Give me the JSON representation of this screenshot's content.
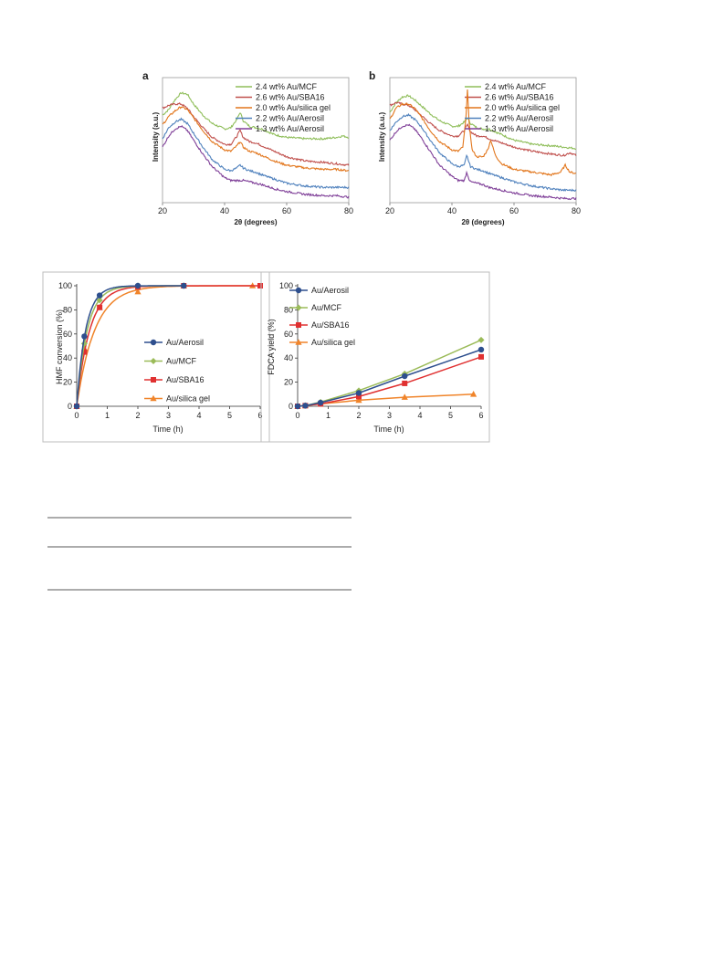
{
  "chart_data": [
    {
      "id": "xrd_a",
      "type": "line",
      "panel_label": "a",
      "xlabel": "2θ (degrees)",
      "ylabel": "Intensity (a.u.)",
      "xlim": [
        20,
        80
      ],
      "x_ticks": [
        "20",
        "40",
        "60",
        "80"
      ],
      "y_ticks": [],
      "legend_position": "top-right",
      "series": [
        {
          "name": "2.4 wt% Au/MCF",
          "color": "#8fbe5a",
          "x": [
            20,
            22,
            24,
            26,
            28,
            30,
            33,
            36,
            40,
            42,
            44,
            45,
            46,
            48,
            50,
            52,
            56,
            60,
            66,
            72,
            76,
            78,
            80
          ],
          "y": [
            63,
            67,
            74,
            79,
            78,
            71,
            63,
            57,
            53,
            54,
            60,
            65,
            59,
            55,
            54,
            53,
            49,
            47,
            46,
            46,
            47,
            48,
            47
          ]
        },
        {
          "name": "2.6 wt% Au/SBA16",
          "color": "#c0504d",
          "x": [
            20,
            22,
            24,
            26,
            28,
            30,
            33,
            36,
            40,
            42,
            44,
            45,
            46,
            48,
            50,
            52,
            56,
            60,
            66,
            72,
            76,
            80
          ],
          "y": [
            68,
            70,
            71,
            71,
            68,
            62,
            54,
            47,
            42,
            42,
            48,
            52,
            47,
            44,
            43,
            41,
            37,
            33,
            30,
            29,
            28,
            27
          ]
        },
        {
          "name": "2.0 wt% Au/silica gel",
          "color": "#e2761c",
          "x": [
            20,
            22,
            24,
            26,
            28,
            30,
            33,
            36,
            40,
            42,
            44,
            45,
            46,
            48,
            50,
            52,
            56,
            60,
            66,
            72,
            76,
            80
          ],
          "y": [
            56,
            62,
            66,
            69,
            67,
            61,
            52,
            44,
            38,
            37,
            41,
            44,
            40,
            37,
            36,
            34,
            30,
            27,
            25,
            24,
            24,
            23
          ]
        },
        {
          "name": "2.2 wt% Au/Aerosil",
          "color": "#4f81bd",
          "x": [
            20,
            22,
            24,
            26,
            28,
            30,
            33,
            36,
            40,
            42,
            44,
            45,
            46,
            48,
            50,
            52,
            56,
            60,
            66,
            72,
            76,
            80
          ],
          "y": [
            46,
            54,
            58,
            60,
            57,
            50,
            40,
            31,
            24,
            23,
            25,
            27,
            25,
            23,
            22,
            20,
            17,
            14,
            12,
            11,
            11,
            11
          ]
        },
        {
          "name": "1.3 wt% Au/Aerosil",
          "color": "#7f3f98",
          "x": [
            20,
            22,
            24,
            26,
            28,
            30,
            33,
            36,
            40,
            42,
            44,
            46,
            48,
            50,
            52,
            56,
            60,
            66,
            72,
            76,
            80
          ],
          "y": [
            40,
            48,
            53,
            55,
            52,
            45,
            35,
            26,
            18,
            16,
            16,
            16,
            15,
            14,
            13,
            10,
            8,
            6,
            5,
            5,
            4
          ]
        }
      ]
    },
    {
      "id": "xrd_b",
      "type": "line",
      "panel_label": "b",
      "xlabel": "2θ (degrees)",
      "ylabel": "Intensity (a.u.)",
      "xlim": [
        20,
        80
      ],
      "x_ticks": [
        "20",
        "40",
        "60",
        "80"
      ],
      "y_ticks": [],
      "legend_position": "top-right",
      "series": [
        {
          "name": "2.4 wt% Au/MCF",
          "color": "#8fbe5a",
          "x": [
            20,
            22,
            24,
            26,
            28,
            30,
            33,
            36,
            40,
            42,
            44,
            45,
            46,
            48,
            50,
            52,
            56,
            60,
            66,
            72,
            76,
            80
          ],
          "y": [
            65,
            72,
            76,
            77,
            74,
            70,
            64,
            59,
            55,
            55,
            58,
            61,
            57,
            54,
            53,
            53,
            49,
            45,
            42,
            41,
            40,
            39
          ]
        },
        {
          "name": "2.6 wt% Au/SBA16",
          "color": "#c0504d",
          "x": [
            20,
            22,
            24,
            26,
            28,
            30,
            33,
            36,
            40,
            42,
            44,
            45,
            46,
            48,
            50,
            52,
            56,
            60,
            66,
            72,
            76,
            78,
            80
          ],
          "y": [
            70,
            72,
            71,
            70,
            67,
            63,
            57,
            52,
            48,
            48,
            52,
            56,
            51,
            48,
            48,
            46,
            43,
            40,
            37,
            35,
            34,
            36,
            34
          ]
        },
        {
          "name": "2.0 wt% Au/silica gel",
          "color": "#e2761c",
          "x": [
            20,
            22,
            24,
            26,
            28,
            30,
            33,
            36,
            40,
            42,
            43.5,
            44.5,
            45,
            45.5,
            46.5,
            48,
            50,
            51.5,
            52.5,
            54,
            56,
            60,
            66,
            72,
            75,
            76.5,
            78,
            80
          ],
          "y": [
            60,
            68,
            71,
            71,
            68,
            62,
            52,
            44,
            38,
            37,
            40,
            60,
            82,
            58,
            38,
            33,
            33,
            38,
            45,
            34,
            28,
            24,
            22,
            20,
            22,
            27,
            22,
            21
          ]
        },
        {
          "name": "2.2 wt% Au/Aerosil",
          "color": "#4f81bd",
          "x": [
            20,
            22,
            24,
            26,
            28,
            30,
            33,
            36,
            40,
            42,
            44,
            44.8,
            45.5,
            46,
            48,
            50,
            52,
            56,
            60,
            66,
            72,
            76,
            80
          ],
          "y": [
            52,
            58,
            62,
            63,
            60,
            55,
            45,
            36,
            28,
            26,
            27,
            34,
            29,
            26,
            24,
            23,
            21,
            18,
            15,
            12,
            10,
            9,
            9
          ]
        },
        {
          "name": "1.3 wt% Au/Aerosil",
          "color": "#7f3f98",
          "x": [
            20,
            22,
            24,
            26,
            28,
            30,
            33,
            36,
            40,
            42,
            44,
            44.8,
            45.5,
            46,
            48,
            50,
            52,
            56,
            60,
            66,
            72,
            76,
            80
          ],
          "y": [
            45,
            51,
            55,
            56,
            53,
            47,
            37,
            27,
            19,
            16,
            16,
            22,
            17,
            15,
            14,
            13,
            11,
            9,
            7,
            5,
            4,
            3,
            3
          ]
        }
      ]
    },
    {
      "id": "hmf",
      "type": "scatter",
      "xlabel": "Time (h)",
      "ylabel": "HMF conversion (%)",
      "xlim": [
        0,
        6
      ],
      "ylim": [
        0,
        100
      ],
      "x_ticks": [
        "0",
        "1",
        "2",
        "3",
        "4",
        "5",
        "6"
      ],
      "y_ticks": [
        "0",
        "20",
        "40",
        "60",
        "80",
        "100"
      ],
      "legend_position": "center-right",
      "series": [
        {
          "name": "Au/Aerosil",
          "color": "#2e4f8e",
          "marker": "circle",
          "x": [
            0,
            0.25,
            0.75,
            2,
            3.5
          ],
          "y": [
            0,
            58,
            92,
            100,
            100
          ],
          "fit_k": 3.4
        },
        {
          "name": "Au/MCF",
          "color": "#9bbb59",
          "marker": "diamond",
          "x": [
            0,
            0.25,
            0.75,
            2,
            3.5
          ],
          "y": [
            0,
            52,
            88,
            100,
            100
          ],
          "fit_k": 2.9
        },
        {
          "name": "Au/SBA16",
          "color": "#e03030",
          "marker": "square",
          "x": [
            0,
            0.25,
            0.75,
            2,
            3.5,
            6
          ],
          "y": [
            0,
            45,
            82,
            99,
            100,
            100
          ],
          "fit_k": 2.35
        },
        {
          "name": "Au/silica gel",
          "color": "#f0842a",
          "marker": "triangle",
          "x": [
            0,
            0.25,
            0.75,
            2,
            3.5,
            5.75
          ],
          "y": [
            0,
            48,
            82,
            95,
            100,
            100
          ],
          "fit_k": 1.7
        }
      ]
    },
    {
      "id": "fdca",
      "type": "line",
      "xlabel": "Time (h)",
      "ylabel": "FDCA yield (%)",
      "xlim": [
        0,
        6
      ],
      "ylim": [
        0,
        100
      ],
      "x_ticks": [
        "0",
        "1",
        "2",
        "3",
        "4",
        "5",
        "6"
      ],
      "y_ticks": [
        "0",
        "20",
        "40",
        "60",
        "80",
        "100"
      ],
      "legend_position": "top-left",
      "series": [
        {
          "name": "Au/Aerosil",
          "color": "#2e4f8e",
          "marker": "circle",
          "x": [
            0,
            0.25,
            0.75,
            2,
            3.5,
            6
          ],
          "y": [
            0,
            0.5,
            3,
            11,
            25,
            47
          ]
        },
        {
          "name": "Au/MCF",
          "color": "#9bbb59",
          "marker": "diamond",
          "x": [
            0,
            0.25,
            0.75,
            2,
            3.5,
            6
          ],
          "y": [
            0,
            0.5,
            3.5,
            13,
            27,
            55
          ]
        },
        {
          "name": "Au/SBA16",
          "color": "#e03030",
          "marker": "square",
          "x": [
            0,
            0.25,
            0.75,
            2,
            3.5,
            6
          ],
          "y": [
            0,
            0.5,
            2,
            8,
            19,
            41
          ]
        },
        {
          "name": "Au/silica gel",
          "color": "#f0842a",
          "marker": "triangle",
          "x": [
            0,
            0.25,
            0.75,
            2,
            3.5,
            5.75
          ],
          "y": [
            0,
            0.5,
            2,
            5,
            7.5,
            10
          ]
        }
      ]
    }
  ]
}
